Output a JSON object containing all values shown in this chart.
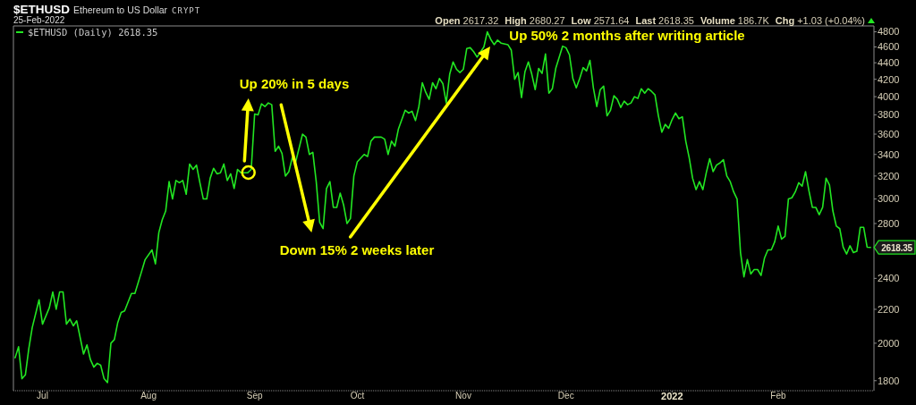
{
  "chart_data": {
    "type": "line",
    "title": "$ETHUSD",
    "subtitle": "Ethereum to US Dollar",
    "annotations": [
      "CRYPT",
      "25-Feb-2022",
      "Open 2617.32",
      "High 2680.27",
      "Low 2571.64",
      "Last 2618.35",
      "Volume 186.7K",
      "Chg +1.03 (+0.04%)",
      "Up 20% in 5 days",
      "Down 15% 2 weeks later",
      "Up 50% 2 months after writing article"
    ],
    "log": true,
    "legend": "top left",
    "xlim": [
      "2021-06-22T12:00",
      "2022-03-01"
    ],
    "xticks": [
      {
        "value": "2021-07-01",
        "label": "Jul"
      },
      {
        "value": "2021-08-01",
        "label": "Aug"
      },
      {
        "value": "2021-09-01",
        "label": "Sep"
      },
      {
        "value": "2021-10-01",
        "label": "Oct"
      },
      {
        "value": "2021-11-01",
        "label": "Nov"
      },
      {
        "value": "2021-12-01",
        "label": "Dec"
      },
      {
        "value": "2022-01-01",
        "label": "2022"
      },
      {
        "value": "2022-02-01",
        "label": "Feb"
      }
    ],
    "ylim": [
      1750,
      4880
    ],
    "yticks": [
      1800,
      2000,
      2200,
      2400,
      2800,
      3000,
      3200,
      3400,
      3600,
      3800,
      4000,
      4200,
      4400,
      4600,
      4800
    ],
    "x": [
      "2021-06-23",
      "2021-06-24",
      "2021-06-25",
      "2021-06-26",
      "2021-06-27",
      "2021-06-28",
      "2021-06-30",
      "2021-07-01",
      "2021-07-03",
      "2021-07-04",
      "2021-07-05",
      "2021-07-06",
      "2021-07-07",
      "2021-07-08",
      "2021-07-09",
      "2021-07-10",
      "2021-07-11",
      "2021-07-13",
      "2021-07-14",
      "2021-07-15",
      "2021-07-16",
      "2021-07-17",
      "2021-07-18",
      "2021-07-19",
      "2021-07-20",
      "2021-07-21",
      "2021-07-22",
      "2021-07-23",
      "2021-07-24",
      "2021-07-25",
      "2021-07-27",
      "2021-07-28",
      "2021-07-30",
      "2021-07-31",
      "2021-08-02",
      "2021-08-03",
      "2021-08-04",
      "2021-08-05",
      "2021-08-06",
      "2021-08-07",
      "2021-08-08",
      "2021-08-09",
      "2021-08-10",
      "2021-08-11",
      "2021-08-12",
      "2021-08-13",
      "2021-08-14",
      "2021-08-15",
      "2021-08-16",
      "2021-08-17",
      "2021-08-18",
      "2021-08-19",
      "2021-08-20",
      "2021-08-21",
      "2021-08-22",
      "2021-08-23",
      "2021-08-24",
      "2021-08-25",
      "2021-08-26",
      "2021-08-27",
      "2021-08-28",
      "2021-08-30",
      "2021-08-31",
      "2021-09-01",
      "2021-09-02",
      "2021-09-03",
      "2021-09-04",
      "2021-09-05",
      "2021-09-06",
      "2021-09-07",
      "2021-09-08",
      "2021-09-09",
      "2021-09-10",
      "2021-09-11",
      "2021-09-12",
      "2021-09-13",
      "2021-09-15",
      "2021-09-16",
      "2021-09-17",
      "2021-09-18",
      "2021-09-19",
      "2021-09-20",
      "2021-09-21",
      "2021-09-22",
      "2021-09-23",
      "2021-09-24",
      "2021-09-25",
      "2021-09-26",
      "2021-09-27",
      "2021-09-28",
      "2021-09-29",
      "2021-09-30",
      "2021-10-01",
      "2021-10-03",
      "2021-10-04",
      "2021-10-05",
      "2021-10-06",
      "2021-10-08",
      "2021-10-09",
      "2021-10-10",
      "2021-10-11",
      "2021-10-12",
      "2021-10-13",
      "2021-10-15",
      "2021-10-16",
      "2021-10-17",
      "2021-10-18",
      "2021-10-19",
      "2021-10-20",
      "2021-10-21",
      "2021-10-22",
      "2021-10-23",
      "2021-10-24",
      "2021-10-25",
      "2021-10-26",
      "2021-10-27",
      "2021-10-28",
      "2021-10-29",
      "2021-10-30",
      "2021-10-31",
      "2021-11-01",
      "2021-11-02",
      "2021-11-03",
      "2021-11-04",
      "2021-11-05",
      "2021-11-07",
      "2021-11-08",
      "2021-11-09",
      "2021-11-10",
      "2021-11-11",
      "2021-11-12",
      "2021-11-14",
      "2021-11-15",
      "2021-11-16",
      "2021-11-17",
      "2021-11-18",
      "2021-11-19",
      "2021-11-20",
      "2021-11-21",
      "2021-11-22",
      "2021-11-23",
      "2021-11-24",
      "2021-11-25",
      "2021-11-26",
      "2021-11-27",
      "2021-11-28",
      "2021-11-30",
      "2021-12-01",
      "2021-12-02",
      "2021-12-03",
      "2021-12-04",
      "2021-12-05",
      "2021-12-06",
      "2021-12-07",
      "2021-12-08",
      "2021-12-09",
      "2021-12-10",
      "2021-12-11",
      "2021-12-12",
      "2021-12-13",
      "2021-12-14",
      "2021-12-15",
      "2021-12-16",
      "2021-12-17",
      "2021-12-18",
      "2021-12-19",
      "2021-12-20",
      "2021-12-21",
      "2021-12-22",
      "2021-12-23",
      "2021-12-24",
      "2021-12-25",
      "2021-12-26",
      "2021-12-27",
      "2021-12-28",
      "2021-12-29",
      "2021-12-30",
      "2021-12-31",
      "2022-01-01",
      "2022-01-02",
      "2022-01-03",
      "2022-01-04",
      "2022-01-05",
      "2022-01-06",
      "2022-01-07",
      "2022-01-08",
      "2022-01-09",
      "2022-01-10",
      "2022-01-11",
      "2022-01-12",
      "2022-01-13",
      "2022-01-14",
      "2022-01-15",
      "2022-01-16",
      "2022-01-17",
      "2022-01-18",
      "2022-01-19",
      "2022-01-20",
      "2022-01-21",
      "2022-01-22",
      "2022-01-23",
      "2022-01-24",
      "2022-01-25",
      "2022-01-26",
      "2022-01-27",
      "2022-01-28",
      "2022-01-29",
      "2022-01-30",
      "2022-01-31",
      "2022-02-01",
      "2022-02-02",
      "2022-02-03",
      "2022-02-04",
      "2022-02-05",
      "2022-02-06",
      "2022-02-07",
      "2022-02-08",
      "2022-02-09",
      "2022-02-10",
      "2022-02-11",
      "2022-02-12",
      "2022-02-13",
      "2022-02-14",
      "2022-02-15",
      "2022-02-16",
      "2022-02-17",
      "2022-02-18",
      "2022-02-19",
      "2022-02-20",
      "2022-02-21",
      "2022-02-22",
      "2022-02-23",
      "2022-02-24",
      "2022-02-25",
      "2022-02-26",
      "2022-02-27",
      "2022-02-28"
    ],
    "series": [
      {
        "name": "$ETHUSD (Daily) 2618.35",
        "color": "#22e622",
        "values": [
          1920,
          1980,
          1810,
          1830,
          1970,
          2090,
          2260,
          2110,
          2210,
          2310,
          2200,
          2310,
          2310,
          2110,
          2140,
          2100,
          2130,
          1940,
          1990,
          1910,
          1870,
          1890,
          1880,
          1810,
          1790,
          2000,
          2020,
          2120,
          2180,
          2190,
          2300,
          2300,
          2450,
          2530,
          2600,
          2500,
          2730,
          2830,
          2900,
          3150,
          3000,
          3160,
          3140,
          3160,
          3040,
          3310,
          3260,
          3300,
          3140,
          3000,
          3000,
          3180,
          3270,
          3220,
          3230,
          3310,
          3160,
          3220,
          3090,
          3260,
          3230,
          3230,
          3260,
          3810,
          3800,
          3920,
          3890,
          3930,
          3910,
          3430,
          3480,
          3410,
          3200,
          3240,
          3370,
          3330,
          3600,
          3570,
          3400,
          3420,
          3150,
          2810,
          2760,
          3090,
          3150,
          2930,
          2930,
          3050,
          2950,
          2800,
          2840,
          3200,
          3330,
          3400,
          3380,
          3530,
          3570,
          3570,
          3550,
          3400,
          3530,
          3480,
          3650,
          3850,
          3820,
          3840,
          3740,
          3890,
          4160,
          4050,
          3970,
          4160,
          4090,
          4210,
          4150,
          3930,
          4260,
          4410,
          4320,
          4280,
          4320,
          4580,
          4590,
          4540,
          4470,
          4600,
          4800,
          4700,
          4630,
          4690,
          4650,
          4630,
          4560,
          4200,
          4280,
          3990,
          4290,
          4410,
          4260,
          4080,
          4330,
          4270,
          4510,
          4040,
          4090,
          4330,
          4610,
          4590,
          4500,
          4210,
          4100,
          4210,
          4340,
          4300,
          4430,
          4100,
          3890,
          4080,
          4120,
          3790,
          3850,
          4010,
          3970,
          3880,
          3950,
          3910,
          3930,
          4000,
          3980,
          4090,
          4040,
          4090,
          4060,
          4020,
          3790,
          3620,
          3700,
          3660,
          3750,
          3820,
          3760,
          3780,
          3530,
          3370,
          3180,
          3080,
          3150,
          3080,
          3230,
          3360,
          3240,
          3300,
          3320,
          3350,
          3200,
          3150,
          3060,
          3000,
          2580,
          2410,
          2530,
          2430,
          2460,
          2460,
          2420,
          2540,
          2600,
          2600,
          2660,
          2780,
          2680,
          2700,
          3000,
          3010,
          3060,
          3140,
          3110,
          3240,
          3070,
          2930,
          2930,
          2870,
          2930,
          3180,
          3120,
          2900,
          2780,
          2760,
          2620,
          2570,
          2630,
          2580,
          2590,
          2770,
          2770,
          2620,
          2618.35
        ],
        "value_labels": [
          null,
          null,
          null,
          null,
          null,
          null,
          null,
          null,
          null,
          null,
          null,
          null,
          null,
          null,
          null,
          null,
          null,
          null,
          null,
          null,
          null,
          null,
          null,
          null,
          null,
          null,
          null,
          null,
          null,
          null,
          null,
          null,
          null,
          null,
          null,
          null,
          null,
          null,
          null,
          null,
          null,
          null,
          null,
          null,
          null,
          null,
          null,
          null,
          null,
          null,
          null,
          null,
          null,
          null,
          null,
          null,
          null,
          null,
          null,
          null,
          null,
          null,
          null,
          null,
          null,
          null,
          null,
          null,
          null,
          null,
          null,
          null,
          null,
          null,
          null,
          null,
          null,
          null,
          null,
          null,
          null,
          null,
          null,
          null,
          null,
          null,
          null,
          null,
          null,
          null,
          null,
          null,
          null,
          null,
          null,
          null,
          null,
          null,
          null,
          null,
          null,
          null,
          null,
          null,
          null,
          null,
          null,
          null,
          null,
          null,
          null,
          null,
          null,
          null,
          null,
          null,
          null,
          null,
          null,
          null,
          null,
          null,
          null,
          null,
          null,
          null,
          null,
          null,
          null,
          null,
          null,
          null,
          null,
          null,
          null,
          null,
          null,
          null,
          null,
          null,
          null,
          null,
          null,
          null,
          null,
          null,
          null,
          null,
          null,
          null,
          null,
          null,
          null,
          null,
          null,
          null,
          null,
          null,
          null,
          null,
          null,
          null,
          null,
          null,
          null,
          null,
          null,
          null,
          null,
          null,
          null,
          null,
          null,
          null,
          null,
          null,
          null,
          null,
          null,
          null,
          null,
          null,
          null,
          null,
          null,
          null,
          null,
          null,
          null,
          null,
          null,
          null,
          null,
          null,
          null,
          null,
          null,
          null,
          null,
          null,
          null,
          null,
          null,
          null,
          null,
          null,
          null,
          null,
          null,
          null,
          null,
          null,
          null,
          null,
          null,
          null,
          null,
          null,
          null,
          null,
          null,
          null,
          null,
          null,
          null,
          null,
          null,
          null,
          null,
          null,
          null,
          null,
          null,
          null,
          null,
          null,
          "2618.35"
        ]
      }
    ]
  }
}
